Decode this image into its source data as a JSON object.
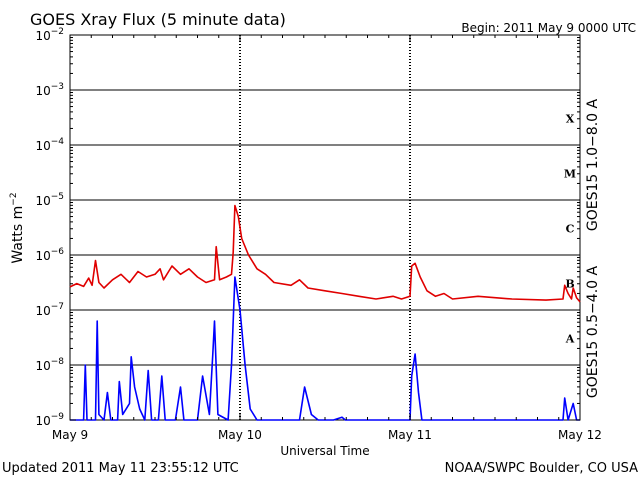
{
  "chart_data": {
    "type": "line",
    "title": "GOES Xray Flux (5 minute data)",
    "begin": "Begin:  2011 May 9 0000 UTC",
    "xlabel": "Universal Time",
    "ylabel_main": "Watts m",
    "ylabel_sup": "−2",
    "yscale": "log",
    "ylim_exp": [
      -9,
      -2
    ],
    "x_unit": "days since 2011 May 9 0000 UTC",
    "xlim": [
      0,
      3
    ],
    "y_ticks": [
      {
        "base": "10",
        "exp": "−2",
        "v": -2
      },
      {
        "base": "10",
        "exp": "−3",
        "v": -3
      },
      {
        "base": "10",
        "exp": "−4",
        "v": -4
      },
      {
        "base": "10",
        "exp": "−5",
        "v": -5
      },
      {
        "base": "10",
        "exp": "−6",
        "v": -6
      },
      {
        "base": "10",
        "exp": "−7",
        "v": -7
      },
      {
        "base": "10",
        "exp": "−8",
        "v": -8
      },
      {
        "base": "10",
        "exp": "−9",
        "v": -9
      }
    ],
    "x_ticks": [
      {
        "label": "May 9",
        "x": 0
      },
      {
        "label": "May 10",
        "x": 1
      },
      {
        "label": "May 11",
        "x": 2
      },
      {
        "label": "May 12",
        "x": 3
      }
    ],
    "flare_classes": [
      {
        "label": "X",
        "v": -3.5
      },
      {
        "label": "M",
        "v": -4.5
      },
      {
        "label": "C",
        "v": -5.5
      },
      {
        "label": "B",
        "v": -6.5
      },
      {
        "label": "A",
        "v": -7.5
      }
    ],
    "series": [
      {
        "name": "GOES15 1.0−8.0 A",
        "color": "#e00000",
        "points": [
          [
            0.0,
            -6.58
          ],
          [
            0.04,
            -6.52
          ],
          [
            0.08,
            -6.57
          ],
          [
            0.11,
            -6.42
          ],
          [
            0.13,
            -6.55
          ],
          [
            0.15,
            -6.1
          ],
          [
            0.17,
            -6.5
          ],
          [
            0.2,
            -6.6
          ],
          [
            0.25,
            -6.45
          ],
          [
            0.3,
            -6.35
          ],
          [
            0.35,
            -6.5
          ],
          [
            0.4,
            -6.3
          ],
          [
            0.45,
            -6.4
          ],
          [
            0.5,
            -6.35
          ],
          [
            0.53,
            -6.25
          ],
          [
            0.55,
            -6.45
          ],
          [
            0.6,
            -6.2
          ],
          [
            0.65,
            -6.35
          ],
          [
            0.7,
            -6.25
          ],
          [
            0.75,
            -6.4
          ],
          [
            0.8,
            -6.5
          ],
          [
            0.85,
            -6.45
          ],
          [
            0.86,
            -5.85
          ],
          [
            0.88,
            -6.45
          ],
          [
            0.92,
            -6.4
          ],
          [
            0.95,
            -6.35
          ],
          [
            0.96,
            -5.95
          ],
          [
            0.97,
            -5.1
          ],
          [
            0.99,
            -5.3
          ],
          [
            1.01,
            -5.7
          ],
          [
            1.05,
            -6.0
          ],
          [
            1.1,
            -6.25
          ],
          [
            1.15,
            -6.35
          ],
          [
            1.2,
            -6.5
          ],
          [
            1.3,
            -6.55
          ],
          [
            1.35,
            -6.45
          ],
          [
            1.4,
            -6.6
          ],
          [
            1.5,
            -6.65
          ],
          [
            1.6,
            -6.7
          ],
          [
            1.7,
            -6.75
          ],
          [
            1.8,
            -6.8
          ],
          [
            1.9,
            -6.75
          ],
          [
            1.95,
            -6.8
          ],
          [
            2.0,
            -6.75
          ],
          [
            2.01,
            -6.2
          ],
          [
            2.03,
            -6.15
          ],
          [
            2.06,
            -6.4
          ],
          [
            2.1,
            -6.65
          ],
          [
            2.15,
            -6.75
          ],
          [
            2.2,
            -6.7
          ],
          [
            2.25,
            -6.8
          ],
          [
            2.4,
            -6.75
          ],
          [
            2.6,
            -6.8
          ],
          [
            2.8,
            -6.82
          ],
          [
            2.9,
            -6.8
          ],
          [
            2.91,
            -6.55
          ],
          [
            2.93,
            -6.7
          ],
          [
            2.95,
            -6.8
          ],
          [
            2.96,
            -6.6
          ],
          [
            2.98,
            -6.78
          ],
          [
            3.0,
            -6.85
          ]
        ]
      },
      {
        "name": "GOES15 0.5−4.0 A",
        "color": "#0000ff",
        "points": [
          [
            0.0,
            -9.0
          ],
          [
            0.08,
            -9.0
          ],
          [
            0.09,
            -8.0
          ],
          [
            0.1,
            -9.0
          ],
          [
            0.15,
            -9.0
          ],
          [
            0.16,
            -7.2
          ],
          [
            0.17,
            -8.9
          ],
          [
            0.2,
            -9.0
          ],
          [
            0.22,
            -8.5
          ],
          [
            0.24,
            -9.0
          ],
          [
            0.28,
            -9.0
          ],
          [
            0.29,
            -8.3
          ],
          [
            0.31,
            -8.9
          ],
          [
            0.35,
            -8.7
          ],
          [
            0.36,
            -7.85
          ],
          [
            0.38,
            -8.4
          ],
          [
            0.41,
            -8.8
          ],
          [
            0.44,
            -9.0
          ],
          [
            0.46,
            -8.1
          ],
          [
            0.48,
            -9.0
          ],
          [
            0.52,
            -9.0
          ],
          [
            0.54,
            -8.2
          ],
          [
            0.56,
            -9.0
          ],
          [
            0.62,
            -9.0
          ],
          [
            0.65,
            -8.4
          ],
          [
            0.67,
            -9.0
          ],
          [
            0.75,
            -9.0
          ],
          [
            0.78,
            -8.2
          ],
          [
            0.82,
            -8.9
          ],
          [
            0.84,
            -7.8
          ],
          [
            0.85,
            -7.2
          ],
          [
            0.87,
            -8.9
          ],
          [
            0.93,
            -9.0
          ],
          [
            0.95,
            -8.0
          ],
          [
            0.97,
            -6.4
          ],
          [
            1.0,
            -7.0
          ],
          [
            1.03,
            -8.0
          ],
          [
            1.06,
            -8.8
          ],
          [
            1.1,
            -9.0
          ],
          [
            1.35,
            -9.0
          ],
          [
            1.38,
            -8.4
          ],
          [
            1.42,
            -8.9
          ],
          [
            1.46,
            -9.0
          ],
          [
            1.55,
            -9.0
          ],
          [
            1.6,
            -8.95
          ],
          [
            1.62,
            -9.0
          ],
          [
            2.0,
            -9.0
          ],
          [
            2.01,
            -8.2
          ],
          [
            2.03,
            -7.8
          ],
          [
            2.05,
            -8.5
          ],
          [
            2.07,
            -9.0
          ],
          [
            2.3,
            -9.0
          ],
          [
            2.55,
            -9.0
          ],
          [
            2.85,
            -9.0
          ],
          [
            2.9,
            -9.0
          ],
          [
            2.91,
            -8.6
          ],
          [
            2.93,
            -9.0
          ],
          [
            2.96,
            -8.7
          ],
          [
            2.98,
            -9.0
          ],
          [
            3.0,
            -9.0
          ]
        ]
      }
    ]
  },
  "footer": {
    "updated": "Updated 2011 May 11 23:55:12 UTC",
    "source": "NOAA/SWPC Boulder, CO USA"
  }
}
